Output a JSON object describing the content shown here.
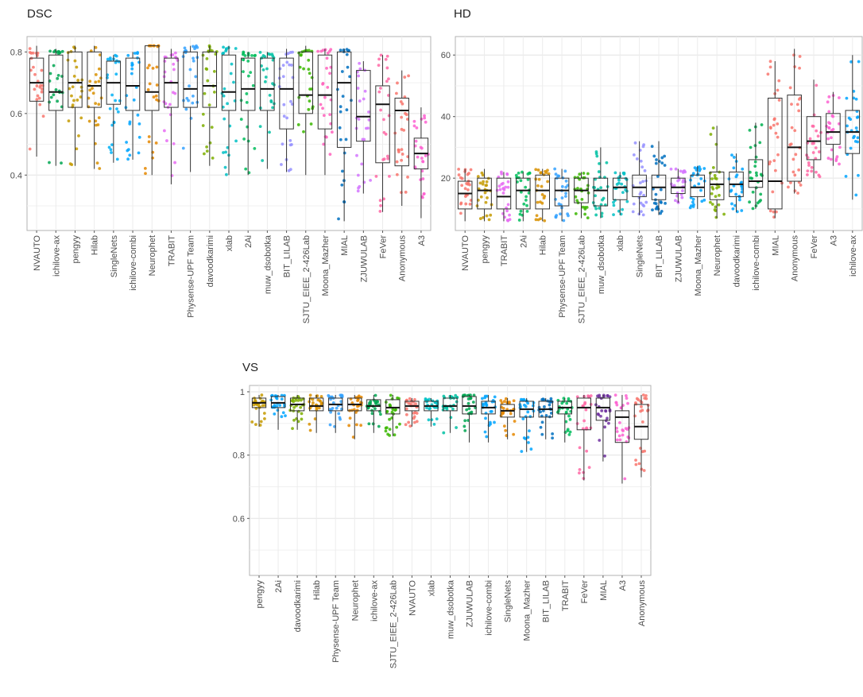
{
  "chart_data": [
    {
      "type": "box",
      "title": "DSC",
      "ylim": [
        0.22,
        0.85
      ],
      "yticks": [
        0.4,
        0.6,
        0.8
      ],
      "grid": true,
      "categories": [
        "NVAUTO",
        "ichilove-ax",
        "pengyy",
        "Hilab",
        "SingleNets",
        "ichilove-combi",
        "Neurophet",
        "TRABIT",
        "Physense-UPF Team",
        "davoodkarimi",
        "xlab",
        "2Ai",
        "muw_dsobotka",
        "BIT_LILAB",
        "SJTU_EIEE_2-426Lab",
        "Moona_Mazher",
        "MIAL",
        "ZJUWULAB",
        "FeVer",
        "Anonymous",
        "A3"
      ],
      "colors": [
        "#F8766D",
        "#00A651",
        "#C49A00",
        "#D89000",
        "#00B0F6",
        "#00A5FF",
        "#E58700",
        "#E76BF3",
        "#35A2FF",
        "#7CAE00",
        "#00BFC4",
        "#00BD5C",
        "#00C1A3",
        "#9590FF",
        "#39B600",
        "#FF62BC",
        "#0070C0",
        "#D376FF",
        "#FF67A4",
        "#F8766D",
        "#FD61D1"
      ],
      "boxes": [
        {
          "min": 0.46,
          "q1": 0.64,
          "median": 0.7,
          "q3": 0.78,
          "max": 0.82
        },
        {
          "min": 0.43,
          "q1": 0.61,
          "median": 0.67,
          "q3": 0.79,
          "max": 0.81
        },
        {
          "min": 0.43,
          "q1": 0.62,
          "median": 0.7,
          "q3": 0.8,
          "max": 0.82
        },
        {
          "min": 0.42,
          "q1": 0.62,
          "median": 0.69,
          "q3": 0.8,
          "max": 0.82
        },
        {
          "min": 0.44,
          "q1": 0.63,
          "median": 0.7,
          "q3": 0.77,
          "max": 0.79
        },
        {
          "min": 0.45,
          "q1": 0.61,
          "median": 0.69,
          "q3": 0.78,
          "max": 0.8
        },
        {
          "min": 0.4,
          "q1": 0.61,
          "median": 0.67,
          "q3": 0.82,
          "max": 0.82
        },
        {
          "min": 0.37,
          "q1": 0.62,
          "median": 0.7,
          "q3": 0.78,
          "max": 0.81
        },
        {
          "min": 0.41,
          "q1": 0.62,
          "median": 0.68,
          "q3": 0.8,
          "max": 0.82
        },
        {
          "min": 0.43,
          "q1": 0.62,
          "median": 0.69,
          "q3": 0.8,
          "max": 0.82
        },
        {
          "min": 0.4,
          "q1": 0.61,
          "median": 0.67,
          "q3": 0.79,
          "max": 0.82
        },
        {
          "min": 0.4,
          "q1": 0.61,
          "median": 0.68,
          "q3": 0.78,
          "max": 0.8
        },
        {
          "min": 0.42,
          "q1": 0.61,
          "median": 0.68,
          "q3": 0.78,
          "max": 0.8
        },
        {
          "min": 0.41,
          "q1": 0.55,
          "median": 0.68,
          "q3": 0.78,
          "max": 0.81
        },
        {
          "min": 0.4,
          "q1": 0.6,
          "median": 0.66,
          "q3": 0.8,
          "max": 0.82
        },
        {
          "min": 0.4,
          "q1": 0.55,
          "median": 0.66,
          "q3": 0.79,
          "max": 0.81
        },
        {
          "min": 0.25,
          "q1": 0.49,
          "median": 0.7,
          "q3": 0.8,
          "max": 0.81
        },
        {
          "min": 0.34,
          "q1": 0.51,
          "median": 0.59,
          "q3": 0.74,
          "max": 0.77
        },
        {
          "min": 0.28,
          "q1": 0.44,
          "median": 0.63,
          "q3": 0.69,
          "max": 0.79
        },
        {
          "min": 0.3,
          "q1": 0.43,
          "median": 0.61,
          "q3": 0.65,
          "max": 0.74
        },
        {
          "min": 0.26,
          "q1": 0.42,
          "median": 0.47,
          "q3": 0.52,
          "max": 0.62
        }
      ]
    },
    {
      "type": "box",
      "title": "HD",
      "ylim": [
        3,
        66
      ],
      "yticks": [
        20,
        40,
        60
      ],
      "grid": true,
      "categories": [
        "NVAUTO",
        "pengyy",
        "TRABIT",
        "2Ai",
        "Hilab",
        "Physense-UPF Team",
        "SJTU_EIEE_2-426Lab",
        "muw_dsobotka",
        "xlab",
        "SingleNets",
        "BIT_LILAB",
        "ZJUWULAB",
        "Moona_Mazher",
        "Neurophet",
        "davoodkarimi",
        "ichilove-combi",
        "MIAL",
        "Anonymous",
        "FeVer",
        "A3",
        "ichilove-ax"
      ],
      "colors": [
        "#F8766D",
        "#C49A00",
        "#E76BF3",
        "#00BD5C",
        "#D89000",
        "#35A2FF",
        "#39B600",
        "#00C1A3",
        "#00BFC4",
        "#9590FF",
        "#0070C0",
        "#D376FF",
        "#00A5FF",
        "#7CAE00",
        "#00A5FF",
        "#00B050",
        "#F8766D",
        "#F8766D",
        "#FF67A4",
        "#FD61D1",
        "#00A5FF"
      ],
      "boxes": [
        {
          "min": 6,
          "q1": 10,
          "median": 15,
          "q3": 19,
          "max": 23
        },
        {
          "min": 6,
          "q1": 10,
          "median": 16,
          "q3": 20,
          "max": 23
        },
        {
          "min": 6,
          "q1": 10,
          "median": 14,
          "q3": 20,
          "max": 22
        },
        {
          "min": 6,
          "q1": 10,
          "median": 16,
          "q3": 20,
          "max": 22
        },
        {
          "min": 6,
          "q1": 10,
          "median": 16,
          "q3": 21,
          "max": 23
        },
        {
          "min": 6,
          "q1": 11,
          "median": 16,
          "q3": 20,
          "max": 23
        },
        {
          "min": 7,
          "q1": 12,
          "median": 16,
          "q3": 20,
          "max": 22
        },
        {
          "min": 7,
          "q1": 11,
          "median": 16,
          "q3": 20,
          "max": 30
        },
        {
          "min": 8,
          "q1": 13,
          "median": 17,
          "q3": 20,
          "max": 22
        },
        {
          "min": 8,
          "q1": 14,
          "median": 17,
          "q3": 21,
          "max": 32
        },
        {
          "min": 8,
          "q1": 13,
          "median": 17,
          "q3": 21,
          "max": 32
        },
        {
          "min": 12,
          "q1": 15,
          "median": 17,
          "q3": 20,
          "max": 23
        },
        {
          "min": 10,
          "q1": 14,
          "median": 17,
          "q3": 21,
          "max": 24
        },
        {
          "min": 7,
          "q1": 13,
          "median": 18,
          "q3": 22,
          "max": 37
        },
        {
          "min": 9,
          "q1": 14,
          "median": 18,
          "q3": 22,
          "max": 28
        },
        {
          "min": 10,
          "q1": 17,
          "median": 19,
          "q3": 26,
          "max": 38
        },
        {
          "min": 7,
          "q1": 10,
          "median": 19,
          "q3": 46,
          "max": 58
        },
        {
          "min": 15,
          "q1": 19,
          "median": 30,
          "q3": 47,
          "max": 62
        },
        {
          "min": 20,
          "q1": 26,
          "median": 32,
          "q3": 40,
          "max": 52
        },
        {
          "min": 24,
          "q1": 31,
          "median": 35,
          "q3": 41,
          "max": 48
        },
        {
          "min": 13,
          "q1": 28,
          "median": 35,
          "q3": 42,
          "max": 60
        }
      ]
    },
    {
      "type": "box",
      "title": "VS",
      "ylim": [
        0.42,
        1.02
      ],
      "yticks": [
        0.6,
        0.8,
        1.0
      ],
      "grid": true,
      "categories": [
        "pengyy",
        "2Ai",
        "davoodkarimi",
        "Hilab",
        "Physense-UPF Team",
        "Neurophet",
        "ichilove-ax",
        "SJTU_EIEE_2-426Lab",
        "NVAUTO",
        "xlab",
        "muw_dsobotka",
        "ZJUWULAB",
        "ichilove-combi",
        "SingleNets",
        "Moona_Mazher",
        "BIT_LILAB",
        "TRABIT",
        "FeVer",
        "MIAL",
        "A3",
        "Anonymous"
      ],
      "colors": [
        "#C49A00",
        "#00A5FF",
        "#7CAE00",
        "#D89000",
        "#35A2FF",
        "#E58700",
        "#00A651",
        "#39B600",
        "#F8766D",
        "#00BFC4",
        "#00C1A3",
        "#00A651",
        "#00A5FF",
        "#E58700",
        "#00A5FF",
        "#0070C0",
        "#00BD5C",
        "#FF67A4",
        "#7030A0",
        "#FD61D1",
        "#F8766D"
      ],
      "boxes": [
        {
          "min": 0.89,
          "q1": 0.95,
          "median": 0.965,
          "q3": 0.98,
          "max": 0.99
        },
        {
          "min": 0.88,
          "q1": 0.95,
          "median": 0.965,
          "q3": 0.985,
          "max": 0.99
        },
        {
          "min": 0.88,
          "q1": 0.94,
          "median": 0.96,
          "q3": 0.98,
          "max": 0.99
        },
        {
          "min": 0.87,
          "q1": 0.94,
          "median": 0.955,
          "q3": 0.98,
          "max": 0.99
        },
        {
          "min": 0.87,
          "q1": 0.94,
          "median": 0.96,
          "q3": 0.98,
          "max": 0.99
        },
        {
          "min": 0.85,
          "q1": 0.94,
          "median": 0.96,
          "q3": 0.98,
          "max": 0.99
        },
        {
          "min": 0.87,
          "q1": 0.94,
          "median": 0.955,
          "q3": 0.975,
          "max": 0.99
        },
        {
          "min": 0.86,
          "q1": 0.93,
          "median": 0.95,
          "q3": 0.975,
          "max": 0.99
        },
        {
          "min": 0.89,
          "q1": 0.94,
          "median": 0.955,
          "q3": 0.97,
          "max": 0.98
        },
        {
          "min": 0.89,
          "q1": 0.94,
          "median": 0.955,
          "q3": 0.97,
          "max": 0.98
        },
        {
          "min": 0.87,
          "q1": 0.94,
          "median": 0.955,
          "q3": 0.98,
          "max": 0.99
        },
        {
          "min": 0.84,
          "q1": 0.93,
          "median": 0.955,
          "q3": 0.985,
          "max": 0.99
        },
        {
          "min": 0.84,
          "q1": 0.93,
          "median": 0.95,
          "q3": 0.97,
          "max": 0.99
        },
        {
          "min": 0.85,
          "q1": 0.92,
          "median": 0.94,
          "q3": 0.96,
          "max": 0.98
        },
        {
          "min": 0.81,
          "q1": 0.92,
          "median": 0.945,
          "q3": 0.97,
          "max": 0.98
        },
        {
          "min": 0.85,
          "q1": 0.92,
          "median": 0.945,
          "q3": 0.97,
          "max": 0.98
        },
        {
          "min": 0.84,
          "q1": 0.93,
          "median": 0.95,
          "q3": 0.97,
          "max": 0.98
        },
        {
          "min": 0.72,
          "q1": 0.88,
          "median": 0.95,
          "q3": 0.98,
          "max": 0.99
        },
        {
          "min": 0.78,
          "q1": 0.91,
          "median": 0.95,
          "q3": 0.98,
          "max": 0.99
        },
        {
          "min": 0.71,
          "q1": 0.84,
          "median": 0.92,
          "q3": 0.94,
          "max": 0.99
        },
        {
          "min": 0.73,
          "q1": 0.85,
          "median": 0.89,
          "q3": 0.96,
          "max": 0.99
        }
      ]
    }
  ]
}
